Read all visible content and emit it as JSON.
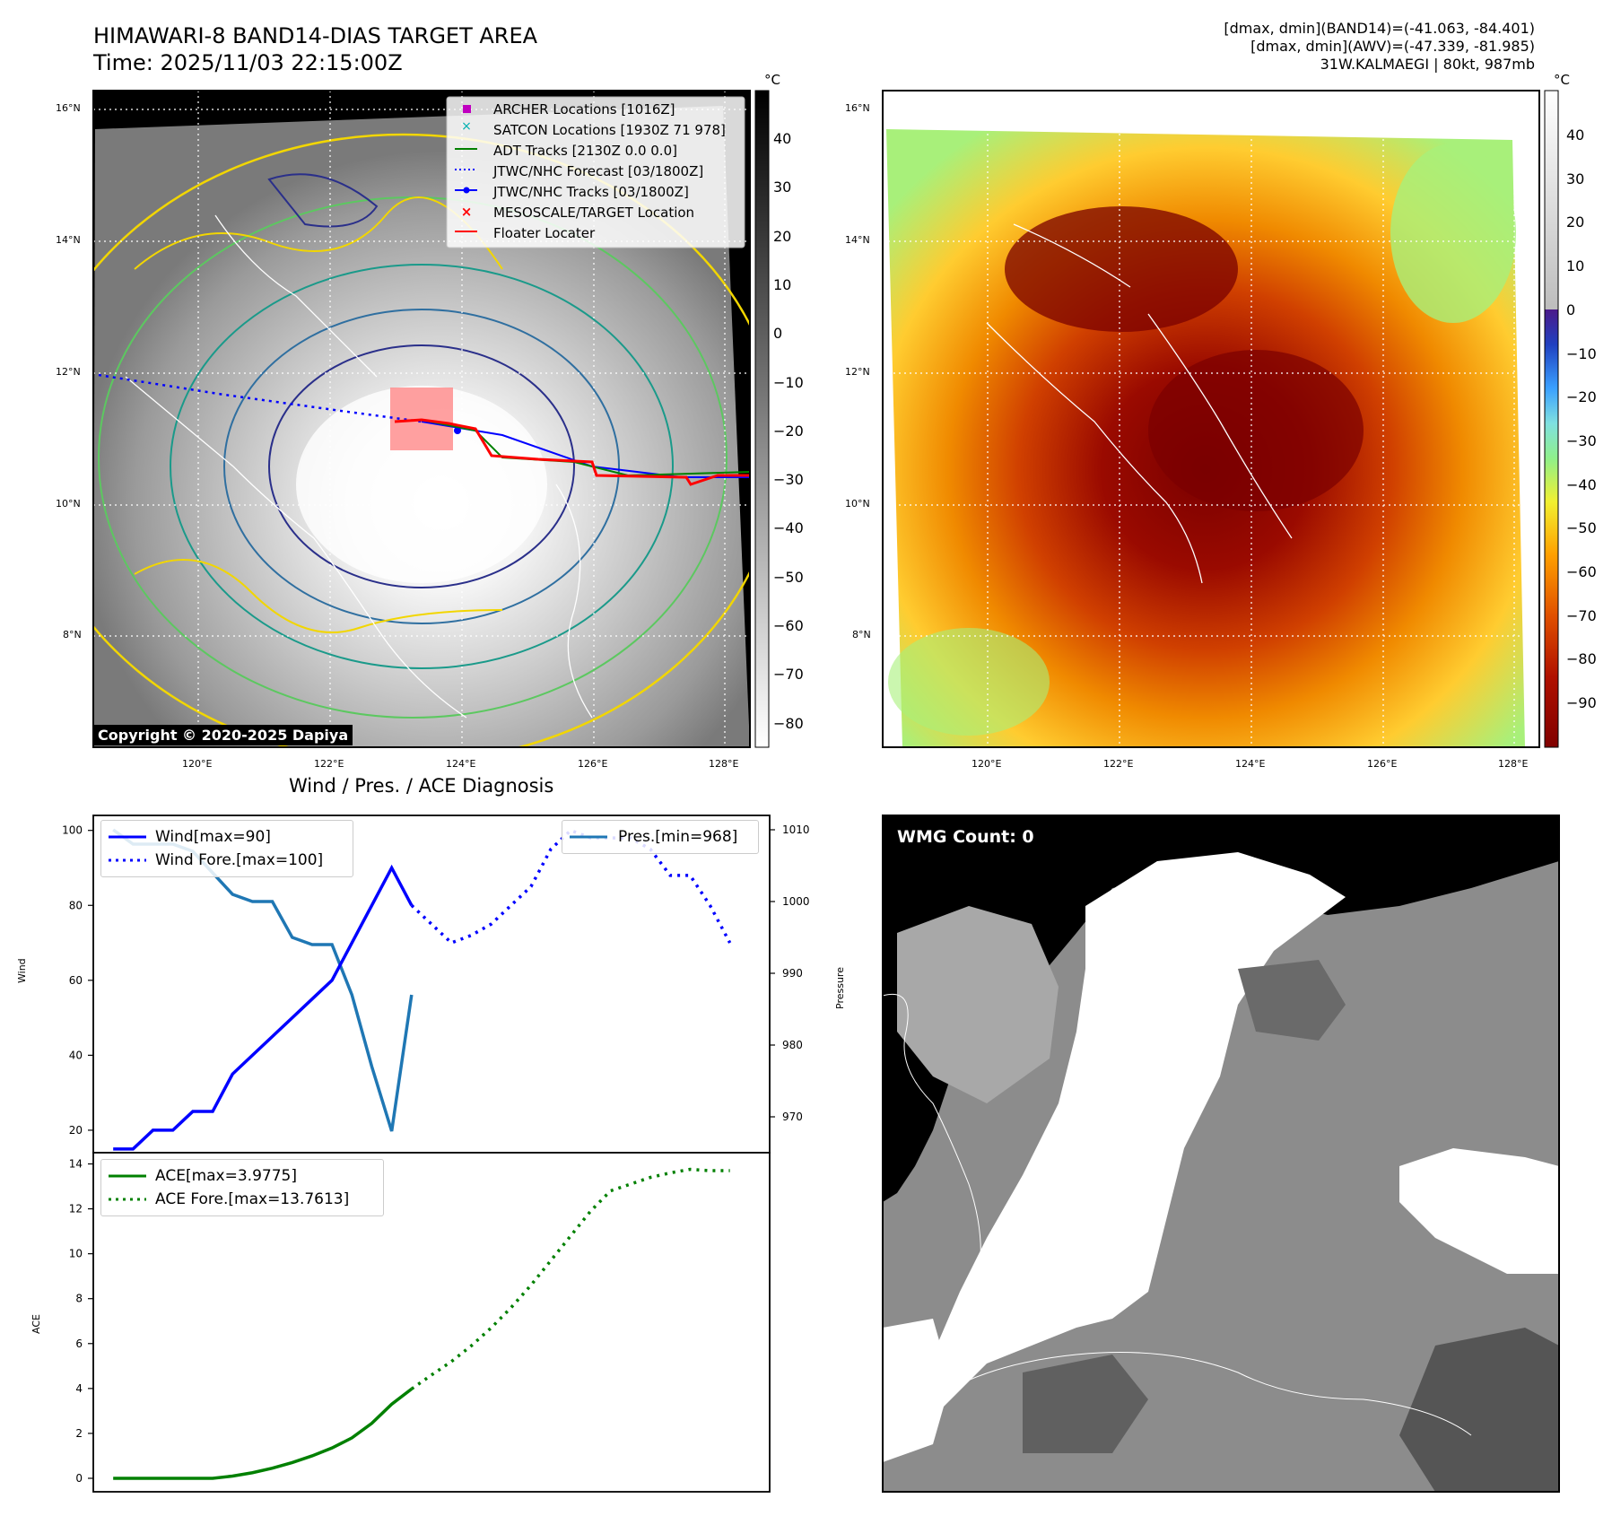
{
  "header": {
    "title_line1": "HIMAWARI-8 BAND14-DIAS TARGET AREA",
    "title_line2": "Time: 2025/11/03 22:15:00Z",
    "info_line1": "[dmax, dmin](BAND14)=(-41.063, -84.401)",
    "info_line2": "[dmax, dmin](AWV)=(-47.339, -81.985)",
    "info_line3": "31W.KALMAEGI | 80kt, 987mb"
  },
  "map_axes": {
    "lat_labels": [
      "16°N",
      "14°N",
      "12°N",
      "10°N",
      "8°N"
    ],
    "lon_labels": [
      "120°E",
      "122°E",
      "124°E",
      "126°E",
      "128°E"
    ]
  },
  "ir_panel": {
    "legend": [
      {
        "label": "ARCHER Locations [1016Z]",
        "marker": "square",
        "color": "#c000c0"
      },
      {
        "label": "SATCON Locations [1930Z 71 978]",
        "marker": "x",
        "color": "#00b0b0"
      },
      {
        "label": "ADT Tracks [2130Z 0.0 0.0]",
        "marker": "line",
        "color": "#008000"
      },
      {
        "label": "JTWC/NHC Forecast [03/1800Z]",
        "marker": "dotted",
        "color": "#0000ff"
      },
      {
        "label": "JTWC/NHC Tracks [03/1800Z]",
        "marker": "line-dot",
        "color": "#0000ff"
      },
      {
        "label": "MESOSCALE/TARGET Location",
        "marker": "x",
        "color": "#ff0000"
      },
      {
        "label": "Floater Locater",
        "marker": "line",
        "color": "#ff0000"
      }
    ],
    "copyright": "Copyright © 2020-2025 Dapiya",
    "colorbar": {
      "unit": "°C",
      "ticks": [
        "40",
        "30",
        "20",
        "10",
        "0",
        "−10",
        "−20",
        "−30",
        "−40",
        "−50",
        "−60",
        "−70",
        "−80"
      ]
    }
  },
  "awv_panel": {
    "colorbar": {
      "unit": "°C",
      "ticks": [
        "40",
        "30",
        "20",
        "10",
        "0",
        "−10",
        "−20",
        "−30",
        "−40",
        "−50",
        "−60",
        "−70",
        "−80",
        "−90"
      ]
    }
  },
  "wmg_panel": {
    "label": "WMG Count: 0"
  },
  "diag": {
    "title": "Wind / Pres. / ACE Diagnosis",
    "wind_ylabel": "Wind",
    "pres_ylabel": "Pressure",
    "ace_ylabel": "ACE",
    "wind_ticks": [
      "100",
      "80",
      "60",
      "40",
      "20"
    ],
    "pres_ticks": [
      "1010",
      "1000",
      "990",
      "980",
      "970"
    ],
    "ace_ticks": [
      "14",
      "12",
      "10",
      "8",
      "6",
      "4",
      "2",
      "0"
    ],
    "legend_wind": "Wind[max=90]",
    "legend_wind_fore": "Wind Fore.[max=100]",
    "legend_pres": "Pres.[min=968]",
    "legend_ace": "ACE[max=3.9775]",
    "legend_ace_fore": "ACE Fore.[max=13.7613]"
  },
  "colors": {
    "wind": "#0000ff",
    "pressure": "#1f77b4",
    "ace": "#008000"
  },
  "chart_data": [
    {
      "type": "line",
      "title": "Wind / Pres. / ACE Diagnosis",
      "ylabel": "Wind",
      "ylim": [
        14,
        104
      ],
      "x": [
        0,
        1,
        2,
        3,
        4,
        5,
        6,
        7,
        8,
        9,
        10,
        11,
        12,
        13,
        14,
        15,
        16,
        17,
        18,
        19,
        20,
        21,
        22,
        23,
        24,
        25,
        26,
        27,
        28,
        29,
        30,
        31
      ],
      "series": [
        {
          "name": "Wind[max=90]",
          "x": [
            0,
            1,
            2,
            3,
            4,
            5,
            6,
            7,
            8,
            9,
            10,
            11,
            12,
            13,
            14,
            15
          ],
          "values": [
            15,
            15,
            20,
            20,
            25,
            25,
            35,
            40,
            45,
            50,
            55,
            60,
            70,
            80,
            90,
            80
          ]
        },
        {
          "name": "Wind Fore.[max=100]",
          "style": "dotted",
          "x": [
            15,
            16,
            17,
            18,
            19,
            20,
            21,
            22,
            23,
            24,
            25,
            26,
            27,
            28,
            29,
            30,
            31
          ],
          "values": [
            80,
            75,
            70,
            72,
            75,
            80,
            85,
            95,
            100,
            98,
            98,
            98,
            95,
            88,
            88,
            80,
            70
          ]
        }
      ]
    },
    {
      "type": "line",
      "ylabel": "Pressure",
      "ylim": [
        965,
        1012
      ],
      "series": [
        {
          "name": "Pres.[min=968]",
          "x": [
            0,
            1,
            2,
            3,
            4,
            5,
            6,
            7,
            8,
            9,
            10,
            11,
            12,
            13,
            14,
            15
          ],
          "values": [
            1010,
            1008,
            1008,
            1008,
            1007,
            1004,
            1001,
            1000,
            1000,
            995,
            994,
            994,
            987,
            977,
            968,
            987
          ]
        }
      ]
    },
    {
      "type": "line",
      "ylabel": "ACE",
      "ylim": [
        -0.6,
        14.5
      ],
      "series": [
        {
          "name": "ACE[max=3.9775]",
          "x": [
            0,
            1,
            2,
            3,
            4,
            5,
            6,
            7,
            8,
            9,
            10,
            11,
            12,
            13,
            14,
            15
          ],
          "values": [
            0,
            0,
            0,
            0,
            0,
            0,
            0.1,
            0.25,
            0.45,
            0.7,
            1.0,
            1.35,
            1.8,
            2.45,
            3.3,
            3.98
          ]
        },
        {
          "name": "ACE Fore.[max=13.7613]",
          "style": "dotted",
          "x": [
            15,
            16,
            17,
            18,
            19,
            20,
            21,
            22,
            23,
            24,
            25,
            26,
            27,
            28,
            29,
            30,
            31
          ],
          "values": [
            3.98,
            4.6,
            5.2,
            5.9,
            6.7,
            7.6,
            8.6,
            9.7,
            10.8,
            11.9,
            12.8,
            13.1,
            13.4,
            13.6,
            13.76,
            13.7,
            13.7
          ]
        }
      ]
    }
  ]
}
